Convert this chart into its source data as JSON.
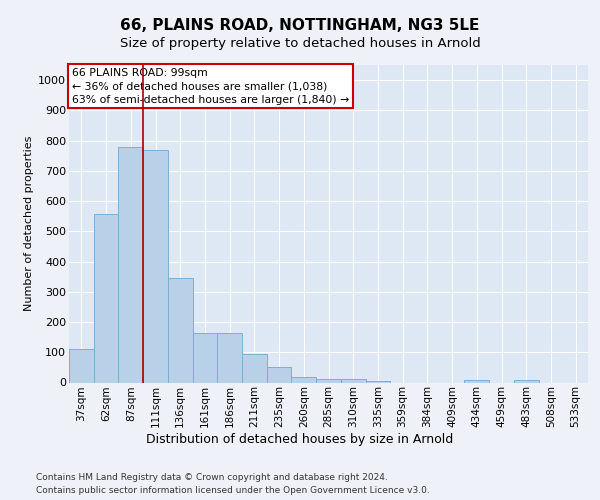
{
  "title1": "66, PLAINS ROAD, NOTTINGHAM, NG3 5LE",
  "title2": "Size of property relative to detached houses in Arnold",
  "xlabel": "Distribution of detached houses by size in Arnold",
  "ylabel": "Number of detached properties",
  "categories": [
    "37sqm",
    "62sqm",
    "87sqm",
    "111sqm",
    "136sqm",
    "161sqm",
    "186sqm",
    "211sqm",
    "235sqm",
    "260sqm",
    "285sqm",
    "310sqm",
    "335sqm",
    "359sqm",
    "384sqm",
    "409sqm",
    "434sqm",
    "459sqm",
    "483sqm",
    "508sqm",
    "533sqm"
  ],
  "values": [
    110,
    557,
    780,
    768,
    345,
    163,
    163,
    95,
    52,
    18,
    10,
    10,
    5,
    0,
    0,
    0,
    8,
    0,
    8,
    0,
    0
  ],
  "bar_color": "#b8d0e8",
  "bar_edge_color": "#7aafd4",
  "vline_x": 2.5,
  "annotation_title": "66 PLAINS ROAD: 99sqm",
  "annotation_line1": "← 36% of detached houses are smaller (1,038)",
  "annotation_line2": "63% of semi-detached houses are larger (1,840) →",
  "annotation_box_color": "#ffffff",
  "annotation_box_edge_color": "#cc0000",
  "footer1": "Contains HM Land Registry data © Crown copyright and database right 2024.",
  "footer2": "Contains public sector information licensed under the Open Government Licence v3.0.",
  "ylim": [
    0,
    1050
  ],
  "yticks": [
    0,
    100,
    200,
    300,
    400,
    500,
    600,
    700,
    800,
    900,
    1000
  ],
  "bg_color": "#eef2f8",
  "plot_bg_color": "#dde8f4",
  "grid_color": "#ffffff",
  "title1_fontsize": 11,
  "title2_fontsize": 9.5
}
